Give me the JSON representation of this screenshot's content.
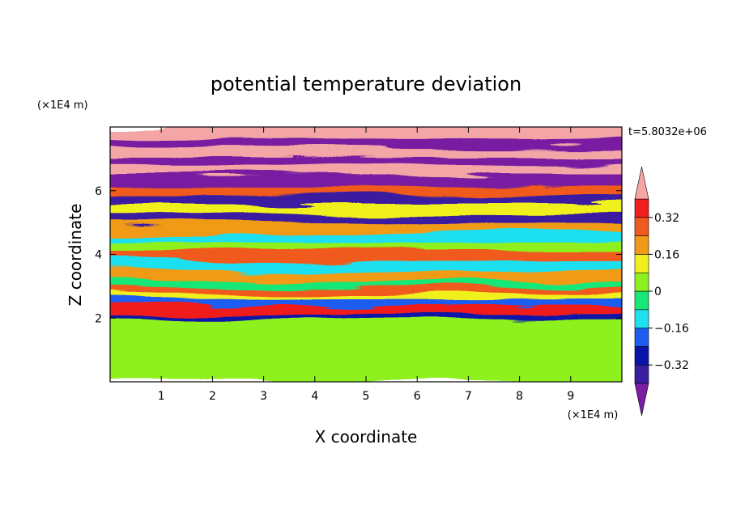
{
  "title": "potential temperature deviation",
  "timestamp": "t=5.8032e+06",
  "chart_data": {
    "type": "heatmap",
    "title": "potential temperature deviation",
    "xlabel": "X coordinate",
    "ylabel": "Z coordinate",
    "x_unit": "(×1E4 m)",
    "y_unit": "(×1E4 m)",
    "xlim": [
      0,
      10
    ],
    "ylim": [
      0,
      8
    ],
    "xticks": [
      "1",
      "2",
      "3",
      "4",
      "5",
      "6",
      "7",
      "8",
      "9"
    ],
    "yticks": [
      "2",
      "4",
      "6"
    ],
    "colorbar": {
      "tick_labels": [
        "0.32",
        "0.16",
        "0",
        "−0.16",
        "−0.32"
      ],
      "tick_values": [
        0.32,
        0.16,
        0,
        -0.16,
        -0.32
      ],
      "levels": [
        -0.4,
        -0.32,
        -0.24,
        -0.16,
        -0.08,
        0,
        0.08,
        0.16,
        0.24,
        0.32,
        0.4
      ],
      "colors": [
        "#7a1fa2",
        "#3a1fa0",
        "#0a14a8",
        "#1e5cf0",
        "#1ee0f0",
        "#18e878",
        "#8ef01e",
        "#f0f01e",
        "#f09a18",
        "#f05a1e",
        "#f01e1e",
        "#f4a6a6"
      ],
      "extend": "both"
    },
    "bands": [
      {
        "z": 0.0,
        "v": 0.02
      },
      {
        "z": 0.6,
        "v": 0.05
      },
      {
        "z": 1.2,
        "v": 0.04
      },
      {
        "z": 1.7,
        "v": 0.07
      },
      {
        "z": 2.0,
        "v": -0.3
      },
      {
        "z": 2.2,
        "v": 0.32
      },
      {
        "z": 2.4,
        "v": -0.22
      },
      {
        "z": 2.6,
        "v": 0.1
      },
      {
        "z": 2.8,
        "v": 0.26
      },
      {
        "z": 3.0,
        "v": -0.06
      },
      {
        "z": 3.2,
        "v": 0.18
      },
      {
        "z": 3.5,
        "v": -0.1
      },
      {
        "z": 3.8,
        "v": 0.28
      },
      {
        "z": 4.1,
        "v": 0.03
      },
      {
        "z": 4.4,
        "v": -0.14
      },
      {
        "z": 4.7,
        "v": 0.22
      },
      {
        "z": 5.0,
        "v": -0.36
      },
      {
        "z": 5.3,
        "v": 0.12
      },
      {
        "z": 5.6,
        "v": -0.4
      },
      {
        "z": 5.9,
        "v": 0.3
      },
      {
        "z": 6.2,
        "v": -0.5
      },
      {
        "z": 6.5,
        "v": 0.5
      },
      {
        "z": 6.8,
        "v": -0.5
      },
      {
        "z": 7.1,
        "v": 0.5
      },
      {
        "z": 7.4,
        "v": -0.5
      },
      {
        "z": 7.7,
        "v": 0.5
      },
      {
        "z": 8.0,
        "v": -0.5
      }
    ],
    "grid": false
  }
}
